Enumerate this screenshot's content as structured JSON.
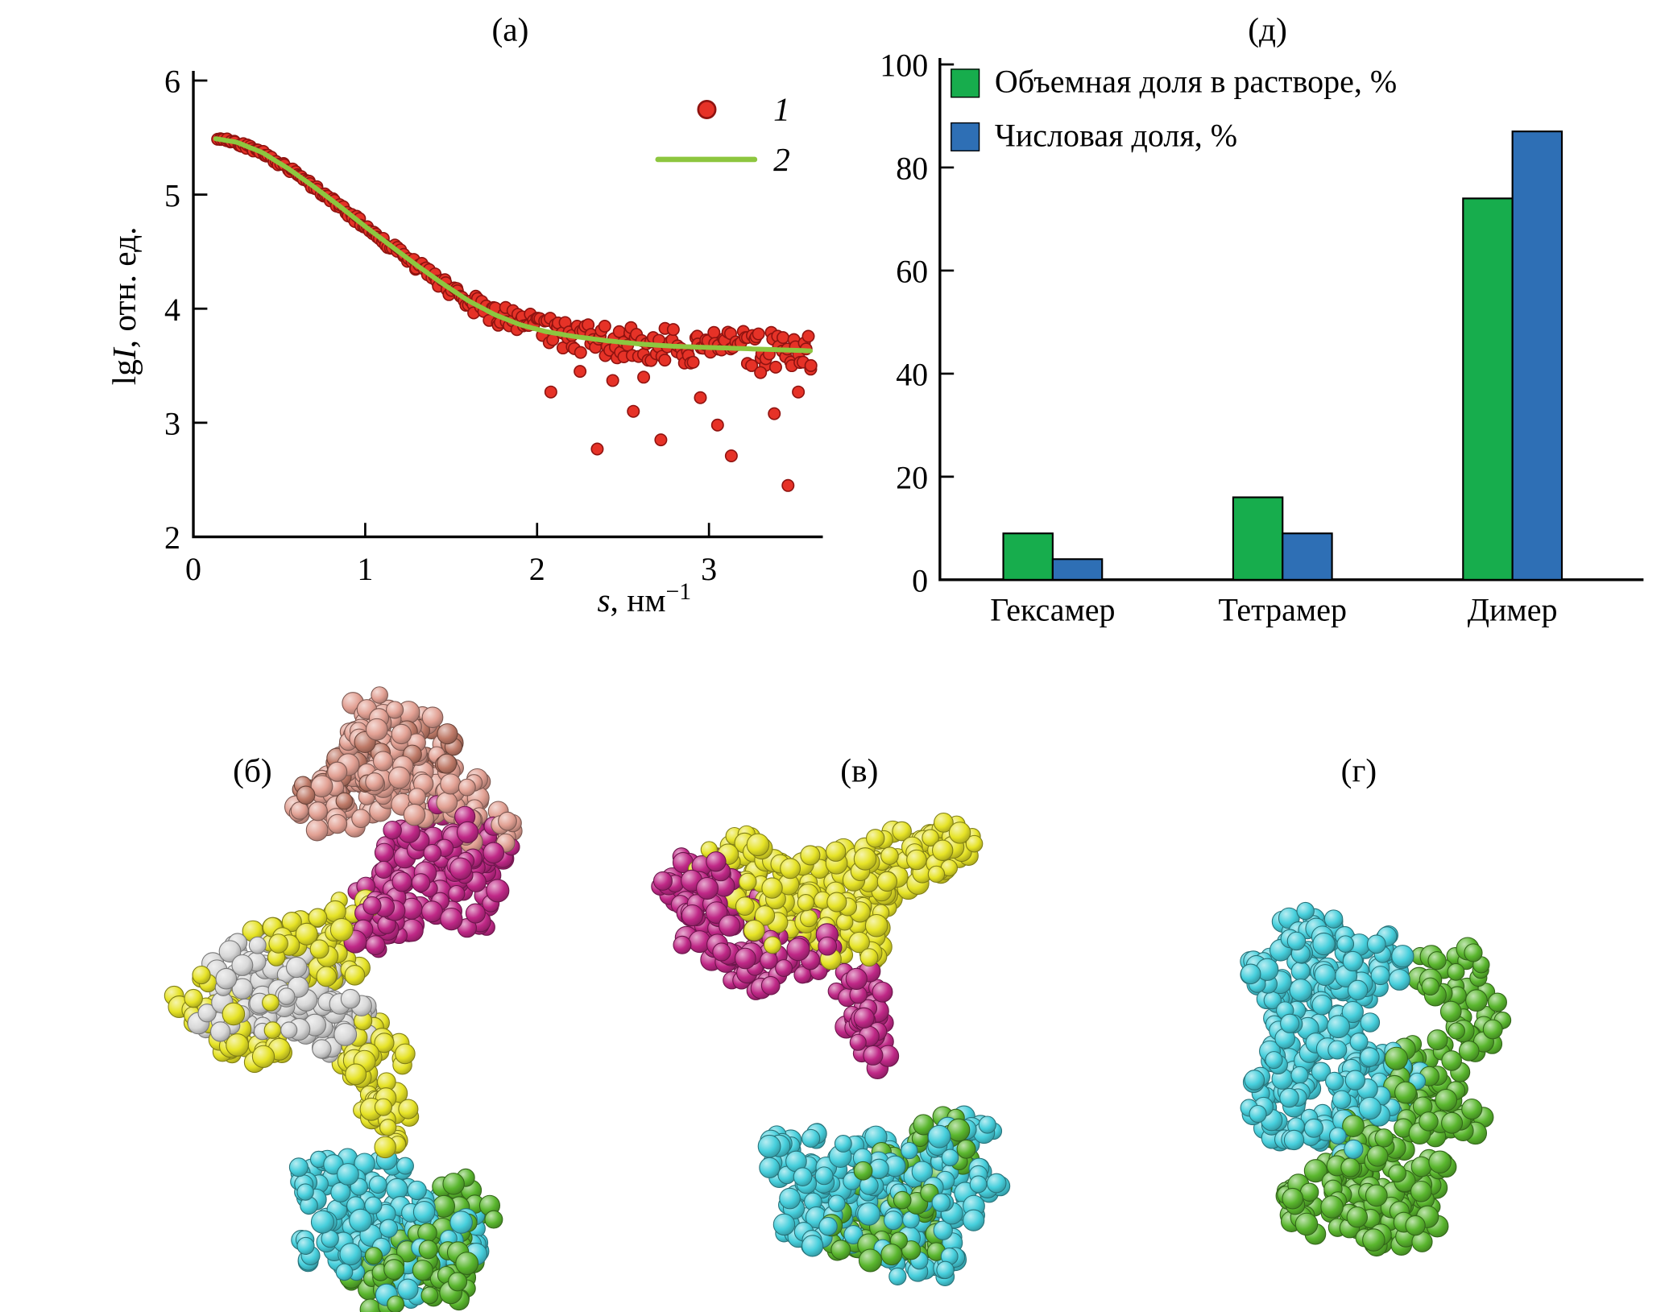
{
  "panel_labels": {
    "a": "(а)",
    "b": "(б)",
    "v": "(в)",
    "g": "(г)",
    "d": "(д)"
  },
  "chart_data": [
    {
      "id": "saxs",
      "type": "scatter",
      "title": "(а)",
      "ylabel_prefix": "lg",
      "ylabel_italic": "I",
      "ylabel_suffix": ", отн. ед.",
      "xlabel_italic": "s",
      "xlabel_mid": ", нм",
      "xlabel_sup": "−1",
      "xlim": [
        0,
        3.66
      ],
      "ylim": [
        2,
        6
      ],
      "xticks": [
        0,
        1,
        2,
        3
      ],
      "yticks": [
        2,
        3,
        4,
        5,
        6
      ],
      "grid": false,
      "legend_position": "top-right",
      "point_color": "#e63227",
      "point_edge_color": "#8f1310",
      "line_color": "#8dc63f",
      "legend": [
        {
          "marker": "dot",
          "label": "1"
        },
        {
          "marker": "line",
          "label": "2"
        }
      ],
      "fit_curve": [
        [
          0.13,
          5.49
        ],
        [
          0.25,
          5.46
        ],
        [
          0.4,
          5.37
        ],
        [
          0.55,
          5.23
        ],
        [
          0.7,
          5.07
        ],
        [
          0.85,
          4.9
        ],
        [
          1.0,
          4.72
        ],
        [
          1.15,
          4.55
        ],
        [
          1.3,
          4.38
        ],
        [
          1.45,
          4.22
        ],
        [
          1.6,
          4.07
        ],
        [
          1.75,
          3.95
        ],
        [
          1.9,
          3.86
        ],
        [
          2.05,
          3.8
        ],
        [
          2.2,
          3.76
        ],
        [
          2.4,
          3.72
        ],
        [
          2.6,
          3.69
        ],
        [
          2.8,
          3.67
        ],
        [
          3.0,
          3.66
        ],
        [
          3.2,
          3.65
        ],
        [
          3.4,
          3.64
        ],
        [
          3.6,
          3.63
        ]
      ],
      "scatter": {
        "seed": 42,
        "n": 290,
        "s_min": 0.14,
        "s_max": 3.6,
        "noise_profile": [
          [
            0.13,
            0.018
          ],
          [
            0.9,
            0.028
          ],
          [
            1.35,
            0.05
          ],
          [
            1.7,
            0.09
          ],
          [
            2.0,
            0.13
          ],
          [
            2.4,
            0.15
          ],
          [
            3.6,
            0.16
          ]
        ],
        "outliers": [
          [
            2.08,
            3.27
          ],
          [
            2.25,
            3.45
          ],
          [
            2.35,
            2.77
          ],
          [
            2.44,
            3.37
          ],
          [
            2.56,
            3.1
          ],
          [
            2.62,
            3.4
          ],
          [
            2.72,
            2.85
          ],
          [
            2.95,
            3.22
          ],
          [
            3.05,
            2.98
          ],
          [
            3.13,
            2.71
          ],
          [
            3.3,
            3.44
          ],
          [
            3.38,
            3.08
          ],
          [
            3.46,
            2.45
          ],
          [
            3.52,
            3.27
          ]
        ]
      }
    },
    {
      "id": "fractions",
      "type": "bar",
      "title": "(д)",
      "categories": [
        "Гексамер",
        "Тетрамер",
        "Димер"
      ],
      "series": [
        {
          "name": "Объемная доля в растворе, %",
          "color": "#17ad4d",
          "values": [
            9,
            16,
            74
          ]
        },
        {
          "name": "Числовая доля, %",
          "color": "#2e6fb5",
          "values": [
            4,
            9,
            87
          ]
        }
      ],
      "ylim": [
        0,
        100
      ],
      "yticks": [
        0,
        20,
        40,
        60,
        80,
        100
      ],
      "grid": false,
      "legend_position": "top-left"
    }
  ],
  "molecules": {
    "seed": 1337,
    "density": 34,
    "sphere_radius": [
      7.5,
      10.5
    ],
    "panels": [
      {
        "name": "hexamer",
        "subunits": [
          {
            "name": "salmon-chain",
            "color": "#e2a093",
            "clusters": [
              [
                368,
                60,
                56,
                42
              ],
              [
                330,
                96,
                42,
                34
              ],
              [
                412,
                100,
                40,
                34
              ],
              [
                452,
                134,
                28,
                24
              ],
              [
                352,
                34,
                34,
                28
              ],
              [
                300,
                118,
                26,
                22
              ]
            ]
          },
          {
            "name": "dark-salmon-chain",
            "color": "#bf7a68",
            "clusters": [
              [
                336,
                70,
                30,
                26
              ],
              [
                398,
                56,
                26,
                22
              ],
              [
                300,
                96,
                24,
                20
              ]
            ]
          },
          {
            "name": "magenta-chain",
            "color": "#c02887",
            "clusters": [
              [
                408,
                150,
                52,
                42
              ],
              [
                372,
                194,
                42,
                34
              ],
              [
                440,
                198,
                34,
                28
              ],
              [
                352,
                222,
                28,
                24
              ],
              [
                452,
                152,
                28,
                24
              ]
            ]
          },
          {
            "name": "gray-chain",
            "color": "#d8d8d8",
            "clusters": [
              [
                268,
                288,
                50,
                38
              ],
              [
                232,
                266,
                40,
                32
              ],
              [
                312,
                312,
                38,
                30
              ],
              [
                208,
                304,
                28,
                24
              ],
              [
                290,
                258,
                32,
                26
              ]
            ]
          },
          {
            "name": "yellow-chain",
            "color": "#e6e326",
            "clusters": [
              [
                298,
                248,
                44,
                34
              ],
              [
                232,
                318,
                44,
                32
              ],
              [
                348,
                348,
                30,
                40
              ],
              [
                358,
                398,
                26,
                32
              ],
              [
                332,
                218,
                28,
                24
              ],
              [
                188,
                290,
                28,
                24
              ],
              [
                262,
                228,
                30,
                24
              ]
            ]
          },
          {
            "name": "cyan-chain",
            "color": "#46cfdc",
            "clusters": [
              [
                362,
                478,
                50,
                40
              ],
              [
                322,
                518,
                42,
                34
              ],
              [
                418,
                508,
                36,
                30
              ],
              [
                302,
                458,
                32,
                28
              ],
              [
                378,
                546,
                34,
                26
              ]
            ]
          },
          {
            "name": "green-chain",
            "color": "#5ab72e",
            "clusters": [
              [
                396,
                522,
                46,
                36
              ],
              [
                352,
                554,
                36,
                26
              ],
              [
                438,
                480,
                32,
                26
              ],
              [
                420,
                548,
                32,
                24
              ]
            ]
          }
        ]
      },
      {
        "name": "tetramer",
        "subunits": [
          {
            "name": "yellow-chain",
            "color": "#e6e326",
            "clusters": [
              [
                762,
                188,
                76,
                40
              ],
              [
                692,
                172,
                44,
                36
              ],
              [
                842,
                160,
                40,
                32
              ],
              [
                880,
                148,
                28,
                24
              ],
              [
                795,
                230,
                36,
                30
              ],
              [
                732,
                212,
                38,
                32
              ]
            ]
          },
          {
            "name": "magenta-chain",
            "color": "#c02887",
            "clusters": [
              [
                678,
                218,
                52,
                44
              ],
              [
                648,
                188,
                40,
                34
              ],
              [
                800,
                288,
                26,
                36
              ],
              [
                812,
                330,
                22,
                30
              ],
              [
                744,
                242,
                32,
                28
              ],
              [
                702,
                260,
                28,
                24
              ]
            ]
          },
          {
            "name": "cyan-chain",
            "color": "#46cfdc",
            "clusters": [
              [
                828,
                458,
                64,
                46
              ],
              [
                768,
                488,
                48,
                36
              ],
              [
                896,
                468,
                36,
                30
              ],
              [
                744,
                438,
                34,
                28
              ],
              [
                858,
                526,
                40,
                28
              ],
              [
                898,
                420,
                28,
                24
              ]
            ]
          },
          {
            "name": "green-chain",
            "color": "#5ab72e",
            "clusters": [
              [
                842,
                462,
                42,
                34
              ],
              [
                806,
                508,
                34,
                28
              ],
              [
                884,
                422,
                30,
                26
              ],
              [
                850,
                518,
                30,
                24
              ]
            ]
          }
        ]
      },
      {
        "name": "dimer",
        "subunits": [
          {
            "name": "cyan-chain",
            "color": "#46cfdc",
            "clusters": [
              [
                1228,
                318,
                56,
                62
              ],
              [
                1266,
                258,
                42,
                36
              ],
              [
                1222,
                228,
                30,
                26
              ],
              [
                1200,
                388,
                38,
                42
              ],
              [
                1288,
                368,
                36,
                32
              ],
              [
                1184,
                272,
                32,
                28
              ],
              [
                1252,
                410,
                34,
                28
              ]
            ]
          },
          {
            "name": "green-chain",
            "color": "#5ab72e",
            "clusters": [
              [
                1292,
                438,
                60,
                50
              ],
              [
                1240,
                478,
                46,
                36
              ],
              [
                1326,
                360,
                36,
                36
              ],
              [
                1348,
                265,
                32,
                26
              ],
              [
                1374,
                308,
                26,
                32
              ],
              [
                1300,
                498,
                40,
                28
              ],
              [
                1352,
                400,
                30,
                28
              ]
            ]
          }
        ]
      }
    ]
  }
}
